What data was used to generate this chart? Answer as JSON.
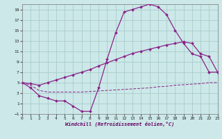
{
  "bg_color": "#cce8e8",
  "grid_color": "#aacccc",
  "line_color": "#882288",
  "xlabel": "Windchill (Refroidissement éolien,°C)",
  "xlim": [
    0,
    23
  ],
  "ylim": [
    -1,
    20
  ],
  "xticks": [
    0,
    1,
    2,
    3,
    4,
    5,
    6,
    7,
    8,
    9,
    10,
    11,
    12,
    13,
    14,
    15,
    16,
    17,
    18,
    19,
    20,
    21,
    22,
    23
  ],
  "yticks": [
    -1,
    1,
    3,
    5,
    7,
    9,
    11,
    13,
    15,
    17,
    19
  ],
  "curve1_x": [
    0,
    1,
    2,
    3,
    4,
    5,
    6,
    7,
    8,
    9,
    10,
    11,
    12,
    13,
    14,
    15,
    16,
    17,
    18,
    19,
    20,
    21,
    22,
    23
  ],
  "curve1_y": [
    5.0,
    4.0,
    2.5,
    2.0,
    1.5,
    1.5,
    0.5,
    -0.5,
    -0.5,
    4.0,
    9.5,
    14.5,
    18.5,
    19.0,
    19.5,
    20.0,
    19.5,
    18.0,
    15.0,
    12.5,
    10.5,
    10.0,
    7.0,
    7.0
  ],
  "curve2_x": [
    0,
    1,
    2,
    3,
    4,
    5,
    6,
    7,
    8,
    9,
    10,
    11,
    12,
    13,
    14,
    15,
    16,
    17,
    18,
    19,
    20,
    21,
    22,
    23
  ],
  "curve2_y": [
    5.0,
    4.8,
    4.5,
    5.0,
    5.5,
    6.0,
    6.5,
    7.0,
    7.5,
    8.2,
    8.8,
    9.4,
    10.0,
    10.6,
    11.0,
    11.4,
    11.8,
    12.2,
    12.5,
    12.8,
    12.5,
    10.5,
    10.0,
    7.0
  ],
  "curve3_x": [
    0,
    1,
    2,
    3,
    4,
    5,
    6,
    7,
    8,
    9,
    10,
    11,
    12,
    13,
    14,
    15,
    16,
    17,
    18,
    19,
    20,
    21,
    22,
    23
  ],
  "curve3_y": [
    5.0,
    4.5,
    3.5,
    3.2,
    3.2,
    3.2,
    3.2,
    3.2,
    3.3,
    3.4,
    3.5,
    3.6,
    3.7,
    3.8,
    3.9,
    4.0,
    4.2,
    4.3,
    4.5,
    4.6,
    4.7,
    4.8,
    5.0,
    5.0
  ]
}
